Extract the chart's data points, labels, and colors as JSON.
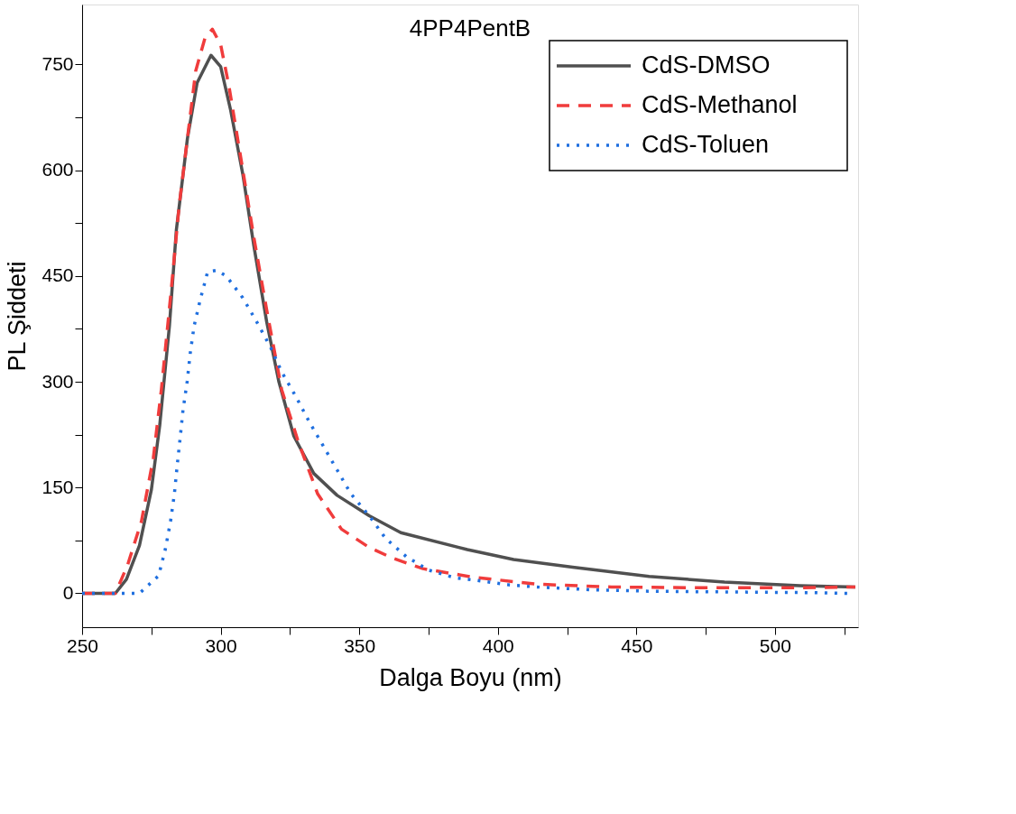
{
  "chart_data": {
    "type": "line",
    "title": "4PP4PentB",
    "xlabel": "Dalga Boyu (nm)",
    "ylabel": "PL Şiddeti",
    "xlim": [
      250,
      530
    ],
    "ylim": [
      -48,
      835
    ],
    "xticks": [
      250,
      {
        "value": 275,
        "label": null
      },
      300,
      {
        "value": 325,
        "label": null
      },
      350,
      {
        "value": 375,
        "label": null
      },
      400,
      {
        "value": 425,
        "label": null
      },
      450,
      {
        "value": 475,
        "label": null
      },
      500,
      {
        "value": 525,
        "label": null
      }
    ],
    "yticks": [
      0,
      {
        "value": 75,
        "label": null
      },
      150,
      {
        "value": 225,
        "label": null
      },
      300,
      {
        "value": 375,
        "label": null
      },
      450,
      {
        "value": 525,
        "label": null
      },
      600,
      {
        "value": 675,
        "label": null
      },
      750
    ],
    "grid": false,
    "legend": "top right",
    "marker": "none",
    "series": [
      {
        "name": "CdS-DMSO",
        "color": "#505050",
        "line_style": "solid",
        "x": [
          250,
          262,
          266,
          270.7,
          275,
          278,
          281.5,
          284,
          288,
          291.5,
          296.5,
          300,
          303.6,
          308,
          312,
          316.6,
          321,
          326.4,
          333.6,
          342,
          353.6,
          365,
          389,
          405.7,
          427,
          454.6,
          481.8,
          509,
          529
        ],
        "values": [
          0,
          0,
          20,
          68,
          147,
          238,
          379,
          515,
          645,
          724,
          763,
          747,
          685,
          594,
          492,
          385,
          300,
          223,
          170,
          139,
          110,
          86,
          62,
          48,
          37,
          24,
          16,
          11,
          9
        ]
      },
      {
        "name": "CdS-Methanol",
        "color": "#f03c3c",
        "line_style": "dashed",
        "x": [
          250,
          262,
          266.4,
          271.4,
          275.7,
          278.6,
          282,
          285,
          288,
          291,
          294.3,
          297,
          300,
          303,
          308,
          312,
          316.6,
          322,
          328,
          335,
          343.6,
          353.6,
          362,
          373,
          391,
          414,
          441,
          472,
          509,
          529
        ],
        "values": [
          0,
          0,
          40,
          102,
          192,
          289,
          424,
          549,
          645,
          741,
          787,
          800,
          778,
          719,
          600,
          504,
          402,
          289,
          215,
          141,
          91,
          65,
          50,
          35,
          23,
          13,
          9,
          8,
          8,
          9
        ]
      },
      {
        "name": "CdS-Toluen",
        "color": "#1f6fdf",
        "line_style": "dotted",
        "x": [
          250,
          270.7,
          277.6,
          280,
          281.9,
          283.3,
          284.3,
          285.4,
          286.4,
          287.9,
          289,
          290.4,
          292.6,
          295.3,
          298.6,
          302,
          308,
          313,
          318,
          322,
          327,
          332,
          337,
          342,
          347,
          353.6,
          359.5,
          367,
          375,
          384.6,
          395,
          404,
          414,
          434,
          454.6,
          482,
          513,
          526.6
        ],
        "values": [
          0,
          0,
          25,
          62,
          102,
          141,
          181,
          221,
          260,
          300,
          340,
          379,
          416,
          456,
          458,
          450,
          419,
          385,
          349,
          314,
          280,
          243,
          209,
          175,
          141,
          110,
          78,
          52,
          33,
          22,
          17,
          12,
          9,
          5,
          3,
          2,
          1,
          0
        ]
      }
    ]
  }
}
